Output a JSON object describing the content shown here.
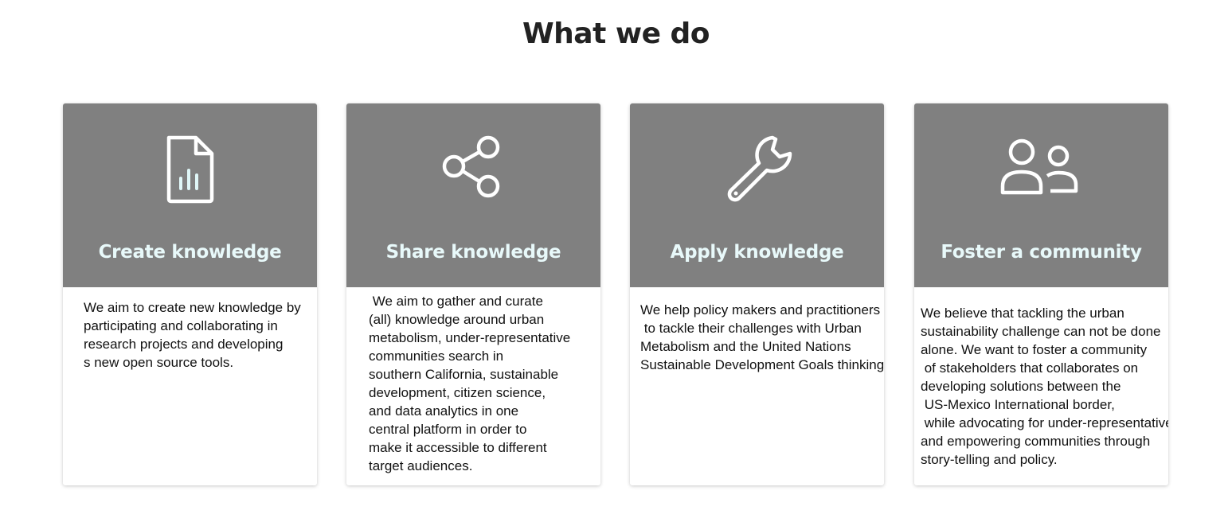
{
  "section": {
    "title": "What we do"
  },
  "colors": {
    "card_header_bg": "#808080",
    "card_title": "#e8f9fa",
    "icon_stroke": "#ffffff"
  },
  "cards": [
    {
      "icon": "document-chart-icon",
      "title": "Create knowledge",
      "text": "We aim to create new knowledge by\nparticipating and collaborating in\nresearch projects and developing\ns new open source tools."
    },
    {
      "icon": "share-icon",
      "title": "Share knowledge",
      "text": " We aim to gather and curate\n(all) knowledge around urban\nmetabolism, under-representative\ncommunities search in\nsouthern California, sustainable\ndevelopment, citizen science,\nand data analytics in one\ncentral platform in order to\nmake it accessible to different\ntarget audiences."
    },
    {
      "icon": "wrench-icon",
      "title": "Apply knowledge",
      "text": "We help policy makers and practitioners\n to tackle their challenges with Urban\nMetabolism and the United Nations\nSustainable Development Goals thinking."
    },
    {
      "icon": "people-icon",
      "title": "Foster a community",
      "text": "We believe that tackling the urban\nsustainability challenge can not be done\nalone. We want to foster a community\n of stakeholders that collaborates on\ndeveloping solutions between the\n US-Mexico International border,\n while advocating for under-representative\nand empowering communities through\nstory-telling and policy."
    }
  ]
}
